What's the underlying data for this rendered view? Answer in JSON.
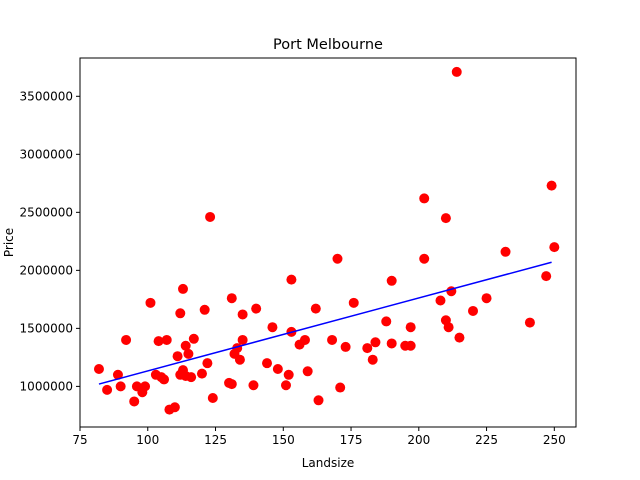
{
  "chart_data": {
    "type": "scatter",
    "title": "Port Melbourne",
    "xlabel": "Landsize",
    "ylabel": "Price",
    "xlim": [
      75,
      258
    ],
    "ylim": [
      650000,
      3830000
    ],
    "xticks": [
      75,
      100,
      125,
      150,
      175,
      200,
      225,
      250
    ],
    "yticks": [
      1000000,
      1500000,
      2000000,
      2500000,
      3000000,
      3500000
    ],
    "grid": false,
    "colors": {
      "points": "#ff0000",
      "line": "#0000ff"
    },
    "points": [
      [
        82,
        1150000
      ],
      [
        85,
        970000
      ],
      [
        89,
        1100000
      ],
      [
        90,
        1000000
      ],
      [
        92,
        1400000
      ],
      [
        95,
        870000
      ],
      [
        96,
        1000000
      ],
      [
        98,
        950000
      ],
      [
        99,
        1000000
      ],
      [
        101,
        1720000
      ],
      [
        103,
        1100000
      ],
      [
        104,
        1390000
      ],
      [
        105,
        1080000
      ],
      [
        106,
        1060000
      ],
      [
        107,
        1400000
      ],
      [
        108,
        800000
      ],
      [
        110,
        820000
      ],
      [
        111,
        1260000
      ],
      [
        112,
        1630000
      ],
      [
        112,
        1100000
      ],
      [
        113,
        1140000
      ],
      [
        113,
        1840000
      ],
      [
        114,
        1350000
      ],
      [
        114,
        1090000
      ],
      [
        115,
        1280000
      ],
      [
        116,
        1080000
      ],
      [
        117,
        1410000
      ],
      [
        120,
        1110000
      ],
      [
        121,
        1660000
      ],
      [
        122,
        1200000
      ],
      [
        123,
        2460000
      ],
      [
        124,
        900000
      ],
      [
        130,
        1030000
      ],
      [
        131,
        1760000
      ],
      [
        131,
        1020000
      ],
      [
        132,
        1280000
      ],
      [
        133,
        1330000
      ],
      [
        134,
        1230000
      ],
      [
        135,
        1620000
      ],
      [
        135,
        1400000
      ],
      [
        139,
        1010000
      ],
      [
        140,
        1670000
      ],
      [
        144,
        1200000
      ],
      [
        146,
        1510000
      ],
      [
        148,
        1150000
      ],
      [
        151,
        1010000
      ],
      [
        152,
        1100000
      ],
      [
        153,
        1920000
      ],
      [
        153,
        1470000
      ],
      [
        156,
        1360000
      ],
      [
        158,
        1400000
      ],
      [
        159,
        1130000
      ],
      [
        162,
        1670000
      ],
      [
        163,
        880000
      ],
      [
        168,
        1400000
      ],
      [
        170,
        2100000
      ],
      [
        171,
        990000
      ],
      [
        173,
        1340000
      ],
      [
        176,
        1720000
      ],
      [
        181,
        1330000
      ],
      [
        183,
        1230000
      ],
      [
        184,
        1380000
      ],
      [
        188,
        1560000
      ],
      [
        190,
        1910000
      ],
      [
        190,
        1370000
      ],
      [
        195,
        1350000
      ],
      [
        197,
        1350000
      ],
      [
        197,
        1510000
      ],
      [
        202,
        2620000
      ],
      [
        202,
        2100000
      ],
      [
        208,
        1740000
      ],
      [
        210,
        2450000
      ],
      [
        210,
        1570000
      ],
      [
        211,
        1510000
      ],
      [
        212,
        1820000
      ],
      [
        214,
        3710000
      ],
      [
        215,
        1420000
      ],
      [
        220,
        1650000
      ],
      [
        225,
        1760000
      ],
      [
        232,
        2160000
      ],
      [
        241,
        1550000
      ],
      [
        247,
        1950000
      ],
      [
        249,
        2730000
      ],
      [
        250,
        2200000
      ]
    ],
    "fit_line": {
      "x": [
        82,
        249
      ],
      "y": [
        1020000,
        2070000
      ]
    }
  }
}
